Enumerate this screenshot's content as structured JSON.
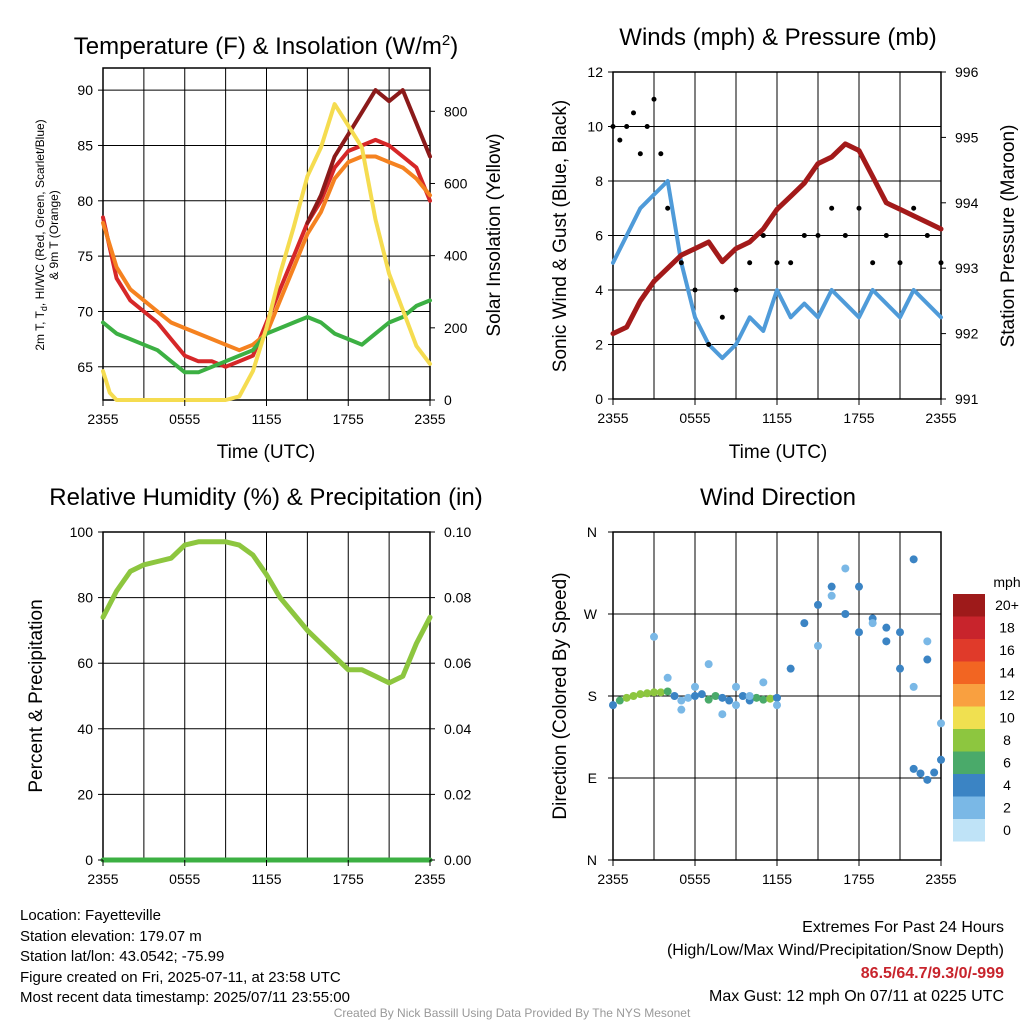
{
  "chart_data": [
    {
      "type": "line",
      "title": "Temperature (F) & Insolation (W/m",
      "title_sup": "2",
      "title_end": ")",
      "xlabel": "Time (UTC)",
      "ylabel_left_1": "2m T, T",
      "ylabel_left_sub": "d",
      "ylabel_left_2": ", HI/WC (Red, Green, Scarlet/Blue)",
      "ylabel_left_line2": "& 9m T (Orange)",
      "ylabel_right": "Solar Insolation (Yellow)",
      "x_ticks": [
        "2355",
        "0555",
        "1155",
        "1755",
        "2355"
      ],
      "x_range_hours": [
        0,
        24
      ],
      "ylim": [
        62,
        92
      ],
      "y_ticks": [
        65,
        70,
        75,
        80,
        85,
        90
      ],
      "y2lim": [
        0,
        920
      ],
      "y2_ticks": [
        0,
        200,
        400,
        600,
        800
      ],
      "series": [
        {
          "color": "#d62728",
          "x": [
            0,
            1,
            2,
            3,
            4,
            5,
            6,
            7,
            8,
            9,
            10,
            11,
            12,
            13,
            14,
            15,
            16,
            17,
            18,
            19,
            20,
            21,
            22,
            23,
            24
          ],
          "values": [
            78.5,
            73,
            71,
            70,
            69,
            67.5,
            66,
            65.5,
            65.5,
            65,
            65.5,
            66,
            69,
            72,
            75,
            78,
            80,
            83,
            84.5,
            85,
            85.5,
            85,
            84,
            83,
            80
          ]
        },
        {
          "color": "#f58220",
          "x": [
            0,
            1,
            2,
            3,
            4,
            5,
            6,
            7,
            8,
            9,
            10,
            11,
            12,
            13,
            14,
            15,
            16,
            17,
            18,
            19,
            20,
            21,
            22,
            23,
            24
          ],
          "values": [
            78,
            74,
            72,
            71,
            70,
            69,
            68.5,
            68,
            67.5,
            67,
            66.5,
            67,
            68,
            71,
            74,
            77,
            79,
            82,
            83.5,
            84,
            84,
            83.5,
            83,
            82,
            80.5
          ]
        },
        {
          "color": "#8b1a1a",
          "x": [
            15,
            16,
            17,
            18,
            19,
            20,
            21,
            22,
            23,
            24
          ],
          "values": [
            78,
            80.5,
            84,
            86,
            88,
            90,
            89,
            90,
            87,
            84
          ]
        },
        {
          "color": "#3cb043",
          "x": [
            0,
            1,
            2,
            3,
            4,
            5,
            6,
            7,
            8,
            9,
            10,
            11,
            12,
            13,
            14,
            15,
            16,
            17,
            18,
            19,
            20,
            21,
            22,
            23,
            24
          ],
          "values": [
            69,
            68,
            67.5,
            67,
            66.5,
            65.5,
            64.5,
            64.5,
            65,
            65.5,
            66,
            66.5,
            68,
            68.5,
            69,
            69.5,
            69,
            68,
            67.5,
            67,
            68,
            69,
            69.5,
            70.5,
            71
          ]
        },
        {
          "color": "#f5dc50",
          "axis": "right",
          "x": [
            0,
            0.5,
            1,
            2,
            3,
            4,
            5,
            6,
            7,
            8,
            9,
            10,
            11,
            12,
            13,
            14,
            15,
            16,
            17,
            18,
            19,
            20,
            21,
            22,
            23,
            24
          ],
          "values": [
            80,
            20,
            0,
            0,
            0,
            0,
            0,
            0,
            0,
            0,
            0,
            10,
            80,
            200,
            350,
            480,
            620,
            700,
            820,
            760,
            700,
            500,
            350,
            250,
            150,
            100
          ]
        }
      ]
    },
    {
      "type": "line",
      "title": "Winds (mph) & Pressure (mb)",
      "xlabel": "Time (UTC)",
      "ylabel": "Sonic Wind & Gust (Blue, Black)",
      "ylabel_right": "Station Pressure (Maroon)",
      "x_ticks": [
        "2355",
        "0555",
        "1155",
        "1755",
        "2355"
      ],
      "x_range_hours": [
        0,
        24
      ],
      "ylim": [
        0,
        12
      ],
      "y_ticks": [
        0,
        2,
        4,
        6,
        8,
        10,
        12
      ],
      "y2lim": [
        991,
        996
      ],
      "y2_ticks": [
        991,
        992,
        993,
        994,
        995,
        996
      ],
      "series": [
        {
          "color": "#4f9bd9",
          "x": [
            0,
            1,
            2,
            3,
            4,
            5,
            6,
            7,
            8,
            9,
            10,
            11,
            12,
            13,
            14,
            15,
            16,
            17,
            18,
            19,
            20,
            21,
            22,
            23,
            24
          ],
          "values": [
            5,
            6,
            7,
            7.5,
            8,
            5,
            3,
            2,
            1.5,
            2,
            3,
            2.5,
            4,
            3,
            3.5,
            3,
            4,
            3.5,
            3,
            4,
            3.5,
            3,
            4,
            3.5,
            3
          ]
        },
        {
          "color": "#000000",
          "type": "scatter",
          "x": [
            0,
            0.5,
            1,
            1.5,
            2,
            2.5,
            3,
            3.5,
            4,
            5,
            6,
            7,
            8,
            9,
            10,
            11,
            12,
            13,
            14,
            15,
            16,
            17,
            18,
            19,
            20,
            21,
            22,
            23,
            24
          ],
          "values": [
            10,
            9.5,
            10,
            10.5,
            9,
            10,
            11,
            9,
            7,
            5,
            4,
            2,
            3,
            4,
            5,
            6,
            5,
            5,
            6,
            6,
            7,
            6,
            7,
            5,
            6,
            5,
            7,
            6,
            5
          ]
        },
        {
          "color": "#a31a1a",
          "axis": "right",
          "x": [
            0,
            1,
            2,
            3,
            4,
            5,
            6,
            7,
            8,
            9,
            10,
            11,
            12,
            13,
            14,
            15,
            16,
            17,
            18,
            19,
            20,
            21,
            22,
            23,
            24
          ],
          "values": [
            992,
            992.1,
            992.5,
            992.8,
            993,
            993.2,
            993.3,
            993.4,
            993.1,
            993.3,
            993.4,
            993.6,
            993.9,
            994.1,
            994.3,
            994.6,
            994.7,
            994.9,
            994.8,
            994.4,
            994,
            993.9,
            993.8,
            993.7,
            993.6
          ]
        }
      ]
    },
    {
      "type": "line",
      "title": "Relative Humidity (%) & Precipitation (in)",
      "ylabel": "Percent & Precipitation",
      "x_ticks": [
        "2355",
        "0555",
        "1155",
        "1755",
        "2355"
      ],
      "x_range_hours": [
        0,
        24
      ],
      "ylim": [
        0,
        100
      ],
      "y_ticks": [
        0,
        20,
        40,
        60,
        80,
        100
      ],
      "y2lim": [
        0,
        0.1
      ],
      "y2_ticks": [
        "0.00",
        "0.02",
        "0.04",
        "0.06",
        "0.08",
        "0.10"
      ],
      "series": [
        {
          "color": "#8dc63f",
          "x": [
            0,
            1,
            2,
            3,
            4,
            5,
            6,
            7,
            8,
            9,
            10,
            11,
            12,
            13,
            14,
            15,
            16,
            17,
            18,
            19,
            20,
            21,
            22,
            23,
            24
          ],
          "values": [
            74,
            82,
            88,
            90,
            91,
            92,
            96,
            97,
            97,
            97,
            96,
            93,
            87,
            80,
            75,
            70,
            66,
            62,
            58,
            58,
            56,
            54,
            56,
            66,
            74
          ]
        },
        {
          "color": "#3cb043",
          "x": [
            0,
            24
          ],
          "values": [
            0,
            0
          ]
        }
      ]
    },
    {
      "type": "scatter",
      "title": "Wind Direction",
      "ylabel": "Direction (Colored By Speed)",
      "x_ticks": [
        "2355",
        "0555",
        "1155",
        "1755",
        "2355"
      ],
      "x_range_hours": [
        0,
        24
      ],
      "y_ticks": [
        "N",
        "E",
        "S",
        "W",
        "N"
      ],
      "ylim": [
        0,
        360
      ],
      "colorbar": {
        "title": "mph",
        "labels": [
          "20+",
          "18",
          "16",
          "14",
          "12",
          "10",
          "8",
          "6",
          "4",
          "2",
          "0"
        ],
        "colors": [
          "#9e1a1a",
          "#c8242c",
          "#e03a2a",
          "#f26522",
          "#f9a040",
          "#f0e050",
          "#8dc63f",
          "#4aaa6a",
          "#3b84c4",
          "#7ab8e6",
          "#bfe3f7"
        ]
      },
      "series": [
        {
          "x": [
            0,
            0.5,
            1,
            1.5,
            2,
            2.5,
            3,
            3.5,
            4,
            4.5,
            5,
            5.5,
            6,
            6.5,
            7,
            7.5,
            8,
            8.5,
            9,
            9.5,
            10,
            10.5,
            11,
            11.5,
            12
          ],
          "values": [
            170,
            175,
            178,
            180,
            182,
            183,
            184,
            184,
            185,
            180,
            175,
            178,
            180,
            182,
            176,
            180,
            178,
            175,
            170,
            180,
            175,
            178,
            176,
            177,
            178
          ],
          "speeds": [
            4,
            6,
            7,
            7,
            7,
            7,
            8,
            7,
            6,
            4,
            2,
            2,
            3,
            4,
            5,
            6,
            4,
            3,
            2,
            3,
            4,
            5,
            6,
            7,
            4
          ]
        },
        {
          "x": [
            3,
            4,
            5,
            6,
            7,
            8,
            9,
            10,
            11,
            12
          ],
          "values": [
            245,
            200,
            165,
            190,
            215,
            160,
            190,
            180,
            195,
            170
          ],
          "speeds": [
            1,
            1,
            1,
            1,
            1,
            2,
            1,
            1,
            1,
            2
          ]
        },
        {
          "x": [
            13,
            14,
            15,
            16,
            17,
            18,
            19,
            20,
            21,
            22,
            23
          ],
          "values": [
            210,
            260,
            280,
            300,
            270,
            250,
            265,
            240,
            250,
            330,
            220
          ],
          "speeds": [
            3,
            3,
            4,
            4,
            4,
            4,
            4,
            4,
            4,
            3,
            3
          ]
        },
        {
          "x": [
            15,
            16,
            17,
            18,
            19,
            20,
            21,
            22,
            23,
            24
          ],
          "values": [
            235,
            290,
            320,
            300,
            260,
            255,
            210,
            190,
            240,
            150
          ],
          "speeds": [
            2,
            2,
            2,
            3,
            2,
            3,
            3,
            2,
            2,
            2
          ]
        },
        {
          "x": [
            22,
            22.5,
            23,
            23.5,
            24
          ],
          "values": [
            100,
            95,
            88,
            96,
            110
          ],
          "speeds": [
            4,
            4,
            4,
            3,
            3
          ]
        }
      ]
    }
  ],
  "info": {
    "location": "Location: Fayetteville",
    "elevation": "Station elevation: 179.07 m",
    "latlon": "Station lat/lon: 43.0542; -75.99",
    "created": "Figure created on Fri, 2025-07-11, at 23:58 UTC",
    "recent": "Most recent data timestamp: 2025/07/11 23:55:00"
  },
  "extremes": {
    "title": "Extremes For Past 24 Hours",
    "subtitle": "(High/Low/Max Wind/Precipitation/Snow Depth)",
    "values": "86.5/64.7/9.3/0/-999",
    "gust": "Max Gust: 12 mph On 07/11 at 0225 UTC"
  },
  "credit": "Created By Nick Bassill Using Data Provided By The NYS Mesonet"
}
